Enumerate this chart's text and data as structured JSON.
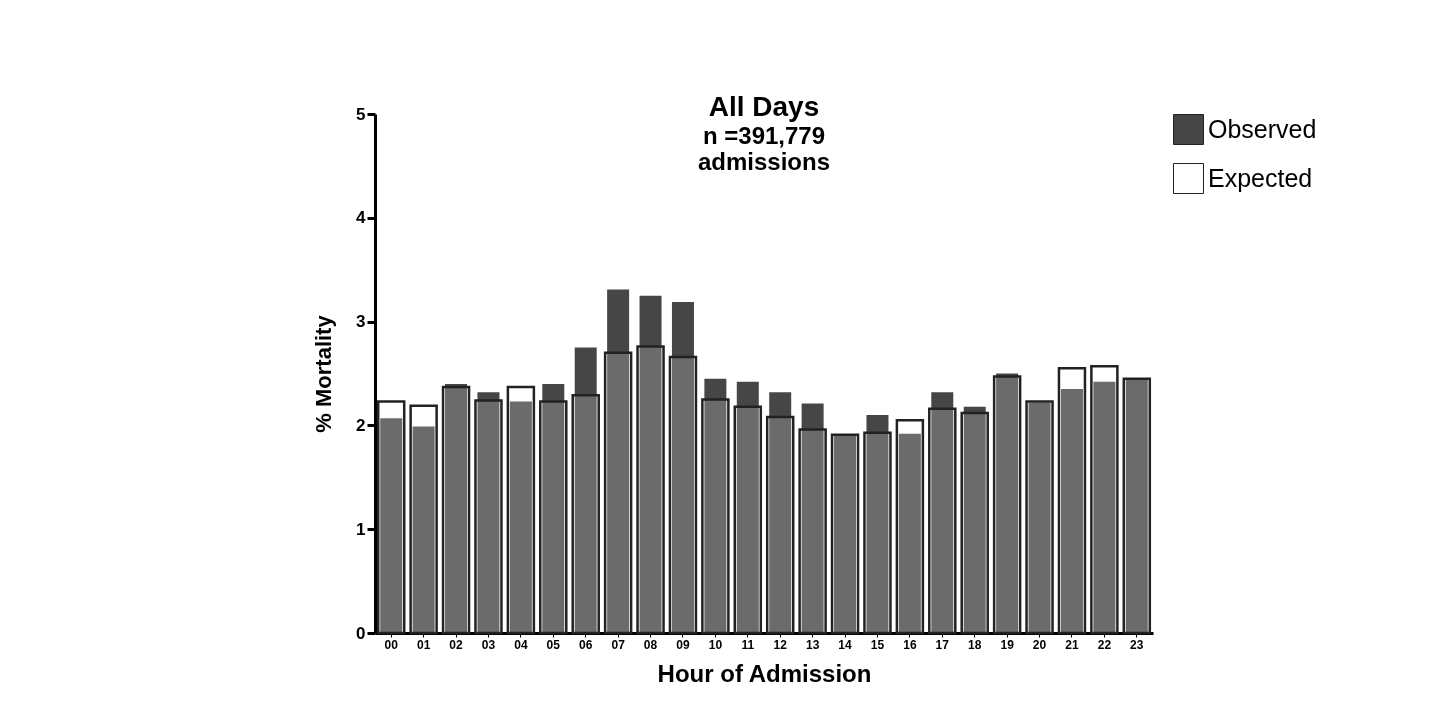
{
  "chart_data": {
    "type": "bar",
    "title": "All Days",
    "subtitle": "n =391,779\nadmissions",
    "xlabel": "Hour of Admission",
    "ylabel": "% Mortality",
    "categories": [
      "00",
      "01",
      "02",
      "03",
      "04",
      "05",
      "06",
      "07",
      "08",
      "09",
      "10",
      "11",
      "12",
      "13",
      "14",
      "15",
      "16",
      "17",
      "18",
      "19",
      "20",
      "21",
      "22",
      "23"
    ],
    "series": [
      {
        "name": "Observed",
        "color": "#464646",
        "values": [
          2.07,
          1.99,
          2.4,
          2.32,
          2.23,
          2.4,
          2.75,
          3.31,
          3.25,
          3.19,
          2.45,
          2.42,
          2.32,
          2.21,
          1.9,
          2.1,
          1.92,
          2.32,
          2.18,
          2.5,
          2.22,
          2.35,
          2.42,
          2.45
        ]
      },
      {
        "name": "Expected",
        "color": "#ffffff",
        "values": [
          2.23,
          2.19,
          2.37,
          2.24,
          2.37,
          2.23,
          2.29,
          2.7,
          2.76,
          2.66,
          2.25,
          2.18,
          2.08,
          1.96,
          1.91,
          1.93,
          2.05,
          2.16,
          2.12,
          2.47,
          2.23,
          2.55,
          2.57,
          2.45
        ]
      }
    ],
    "ylim": [
      0,
      5
    ],
    "yticks": [
      0,
      1,
      2,
      3,
      4,
      5
    ],
    "grid": false,
    "legend": "top right"
  }
}
